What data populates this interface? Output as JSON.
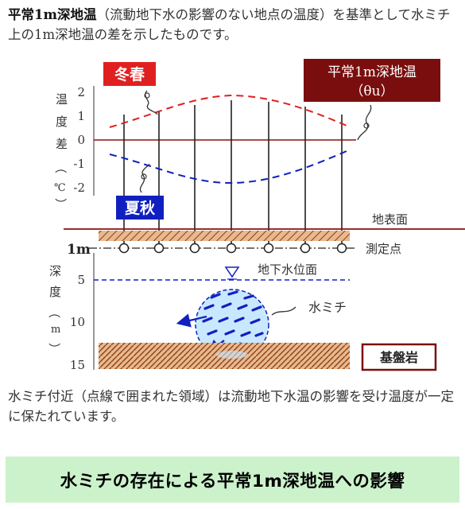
{
  "intro": {
    "bold": "平常1m深地温",
    "rest": "（流動地下水の影響のない地点の温度）を基準として水ミチ上の1m深地温の差を示したものです。"
  },
  "diagram": {
    "upper_axis": {
      "label_chars": [
        "温",
        "度",
        "差",
        "（",
        "℃",
        "）"
      ],
      "ticks": [
        "2",
        "1",
        "0",
        "-1",
        "-2"
      ]
    },
    "lower_axis": {
      "label_chars": [
        "深",
        "度",
        "（",
        "m",
        "）"
      ],
      "ticks": [
        "5",
        "10",
        "15"
      ],
      "one_m_label": "1m"
    },
    "labels": {
      "winter_spring": "冬春",
      "summer_autumn": "夏秋",
      "normal_temp_line1": "平常1m深地温",
      "normal_temp_line2": "（θu）",
      "ground_surface": "地表面",
      "measurement_point": "測定点",
      "groundwater_level": "地下水位面",
      "water_vein": "水ミチ",
      "bedrock": "基盤岩"
    },
    "colors": {
      "winter_red": "#e02020",
      "summer_blue": "#1020c0",
      "dark_red": "#7a0e0e",
      "hatch_fill": "#e8b890",
      "hatch_line": "#8a4010",
      "water_fill": "#c8e8ff"
    }
  },
  "outro": {
    "text": "水ミチ付近（点線で囲まれた領域）は流動地下水温の影響を受け温度が一定に保たれています。"
  },
  "banner": {
    "text": "水ミチの存在による平常1m深地温への影響"
  }
}
